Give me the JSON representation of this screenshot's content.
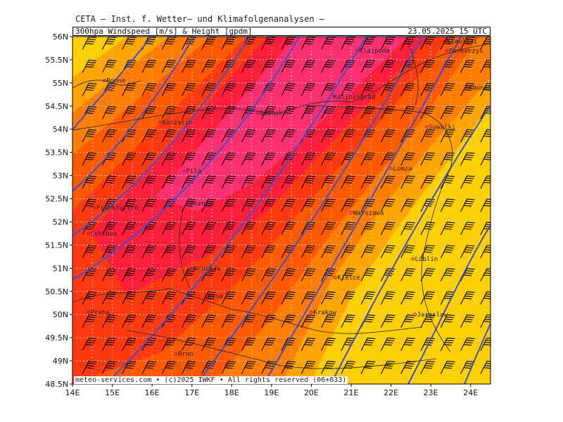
{
  "header": {
    "institute": "CETA — Inst. f. Wetter— und Klimafolgenanalysen —",
    "chart_title": "300hpa Windspeed [m/s] & Height [gpdm]",
    "timestamp": "23.05.2025 15 UTC"
  },
  "footer": {
    "credit": "meteo-services.com • (c)2025 IWKF • All rights reserved (06+033)"
  },
  "chart_data": {
    "type": "heatmap",
    "xlim": [
      14,
      24.5
    ],
    "ylim": [
      48.5,
      56
    ],
    "x_ticks": [
      "14E",
      "15E",
      "16E",
      "17E",
      "18E",
      "19E",
      "20E",
      "21E",
      "22E",
      "23E",
      "24E"
    ],
    "y_ticks": [
      "56N",
      "55.5N",
      "55N",
      "54.5N",
      "54N",
      "53.5N",
      "53N",
      "52.5N",
      "52N",
      "51.5N",
      "51N",
      "50.5N",
      "50N",
      "49.5N",
      "49N",
      "48.5N"
    ],
    "grid": true,
    "colors": {
      "fill_low": "#ffd000",
      "fill_mid": "#ff5a00",
      "fill_high": "#ff2a6a",
      "contour": "#3d4fd6",
      "grid": "#c8c8c8"
    },
    "cities": [
      {
        "name": "Ronne",
        "lon": 14.8,
        "lat": 55.05
      },
      {
        "name": "Klaipeda",
        "lon": 21.15,
        "lat": 55.7
      },
      {
        "name": "Siauliai",
        "lon": 23.35,
        "lat": 55.9
      },
      {
        "name": "Panevezys",
        "lon": 23.4,
        "lat": 55.7
      },
      {
        "name": "Kaunas",
        "lon": 23.9,
        "lat": 54.9
      },
      {
        "name": "Kaliningrad",
        "lon": 20.5,
        "lat": 54.7
      },
      {
        "name": "Gdansk",
        "lon": 18.65,
        "lat": 54.35
      },
      {
        "name": "Koszalin",
        "lon": 16.2,
        "lat": 54.15
      },
      {
        "name": "Suwalki",
        "lon": 22.9,
        "lat": 54.05
      },
      {
        "name": "Pila",
        "lon": 16.8,
        "lat": 53.1
      },
      {
        "name": "Lomza",
        "lon": 22.0,
        "lat": 53.15
      },
      {
        "name": "Frankfurt/O.",
        "lon": 14.55,
        "lat": 52.3
      },
      {
        "name": "Poznan",
        "lon": 16.9,
        "lat": 52.4
      },
      {
        "name": "Warszawa",
        "lon": 21.0,
        "lat": 52.2
      },
      {
        "name": "Cottbus",
        "lon": 14.4,
        "lat": 51.75
      },
      {
        "name": "Lublin",
        "lon": 22.55,
        "lat": 51.2
      },
      {
        "name": "Wroclaw",
        "lon": 17.0,
        "lat": 51.0
      },
      {
        "name": "Kielce",
        "lon": 20.6,
        "lat": 50.8
      },
      {
        "name": "Praha",
        "lon": 14.4,
        "lat": 50.05
      },
      {
        "name": "Nysa",
        "lon": 17.35,
        "lat": 50.4
      },
      {
        "name": "Krakow",
        "lon": 20.0,
        "lat": 50.05
      },
      {
        "name": "Jaroslaw",
        "lon": 22.6,
        "lat": 50.0
      },
      {
        "name": "Brno",
        "lon": 16.6,
        "lat": 49.15
      }
    ]
  }
}
